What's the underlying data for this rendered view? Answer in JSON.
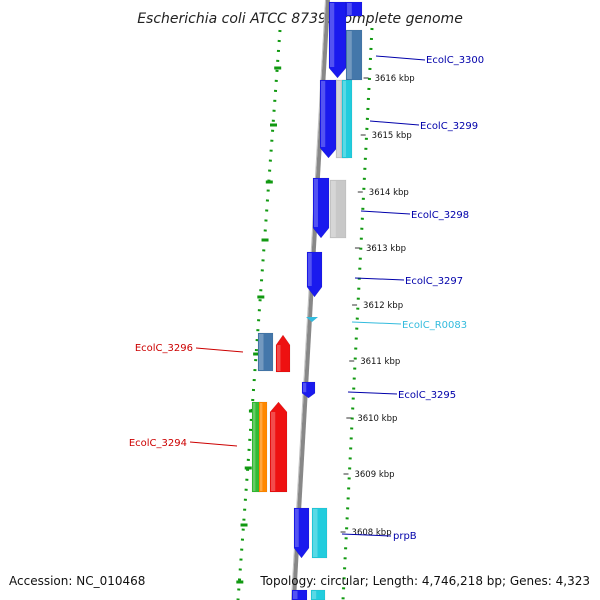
{
  "title": "Escherichia coli ATCC 8739, complete genome",
  "footer": {
    "accession": "Accession: NC_010468",
    "summary": "Topology: circular; Length: 4,746,218 bp; Genes: 4,323"
  },
  "ticks": [
    {
      "label": "3616 kbp"
    },
    {
      "label": "3615 kbp"
    },
    {
      "label": "3614 kbp"
    },
    {
      "label": "3613 kbp"
    },
    {
      "label": "3612 kbp"
    },
    {
      "label": "3611 kbp"
    },
    {
      "label": "3610 kbp"
    },
    {
      "label": "3609 kbp"
    },
    {
      "label": "3608 kbp"
    }
  ],
  "gene_labels": [
    {
      "text": "EcolC_3300",
      "color": "#0000aa"
    },
    {
      "text": "EcolC_3299",
      "color": "#0000aa"
    },
    {
      "text": "EcolC_3298",
      "color": "#0000aa"
    },
    {
      "text": "EcolC_3297",
      "color": "#0000aa"
    },
    {
      "text": "EcolC_R0083",
      "color": "#33bbdd"
    },
    {
      "text": "EcolC_3295",
      "color": "#0000aa"
    },
    {
      "text": "prpB",
      "color": "#0000aa"
    },
    {
      "text": "EcolC_3296",
      "color": "#cc0000"
    },
    {
      "text": "EcolC_3294",
      "color": "#cc0000"
    }
  ],
  "colors": {
    "backbone": "#888888",
    "gc_dots": "#119911",
    "cds_forward": "#1a1aee",
    "cds_reverse": "#ee1111",
    "rna": "#33bbdd",
    "cog_steelblue": "#4477aa",
    "cog_lightgray": "#c8c8c8",
    "cog_cyan": "#22ccdd",
    "cog_green": "#33bb33",
    "cog_orange": "#ff8800"
  }
}
